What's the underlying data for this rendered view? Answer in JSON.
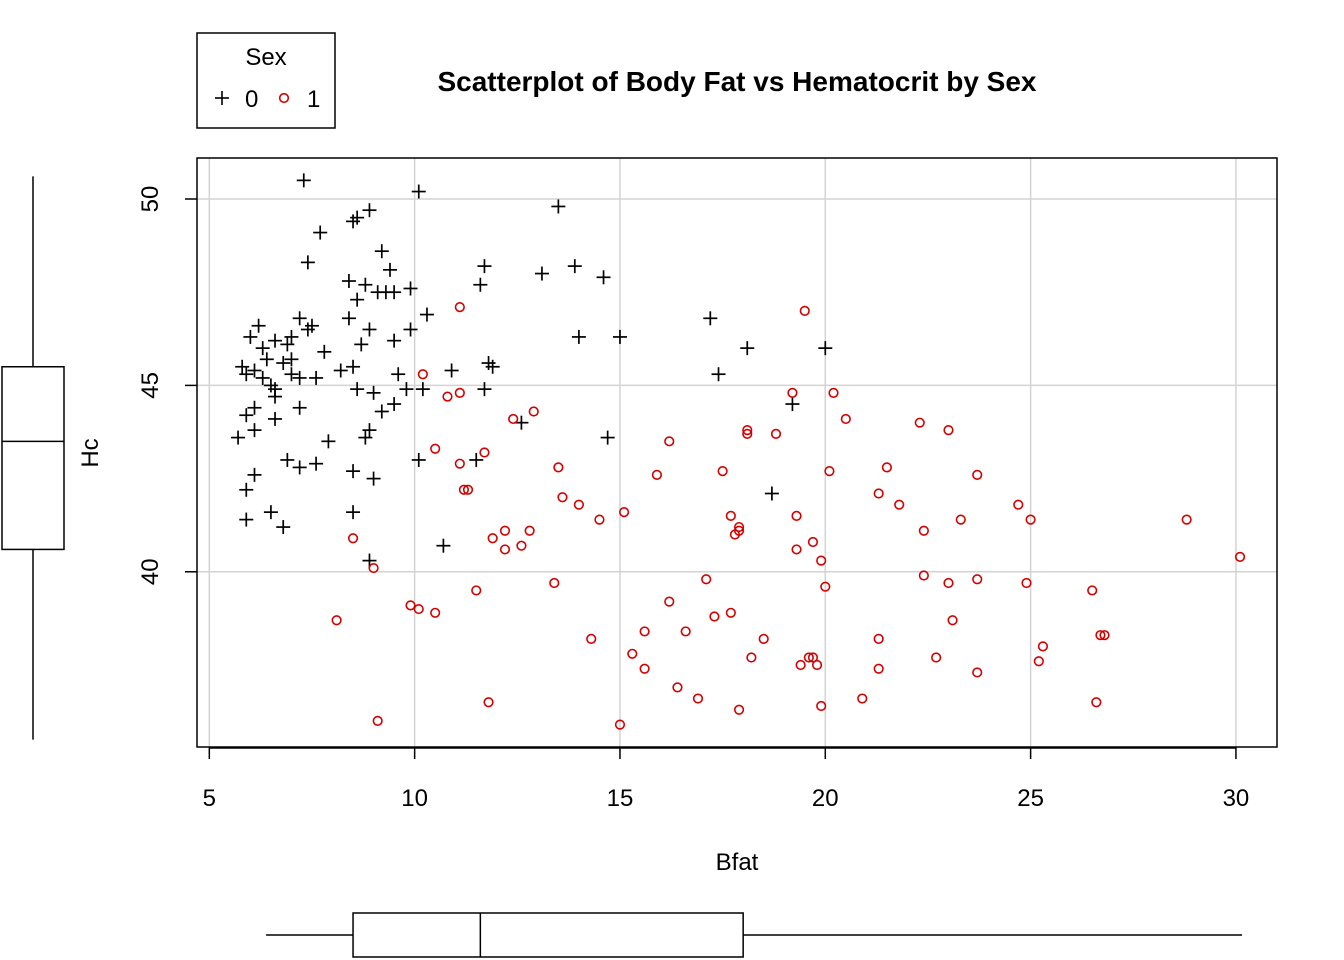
{
  "chart_data": {
    "type": "scatter",
    "title": "Scatterplot of Body Fat vs Hematocrit by Sex",
    "xlabel": "Bfat",
    "ylabel": "Hc",
    "xlim": [
      4.7,
      31.0
    ],
    "ylim": [
      35.3,
      51.1
    ],
    "xticks": [
      5,
      10,
      15,
      20,
      25,
      30
    ],
    "yticks": [
      40,
      45,
      50
    ],
    "grid": true,
    "legend": {
      "title": "Sex",
      "placement": "top-left outside"
    },
    "colors": {
      "0": "#000000",
      "1": "#d40000"
    },
    "series": [
      {
        "name": "0",
        "marker": "plus",
        "color": "#000000",
        "points": [
          [
            7.3,
            50.5
          ],
          [
            10.1,
            50.2
          ],
          [
            8.9,
            49.7
          ],
          [
            13.5,
            49.8
          ],
          [
            8.6,
            49.5
          ],
          [
            8.5,
            49.4
          ],
          [
            7.7,
            49.1
          ],
          [
            9.2,
            48.6
          ],
          [
            7.4,
            48.3
          ],
          [
            9.4,
            48.1
          ],
          [
            11.7,
            48.2
          ],
          [
            13.9,
            48.2
          ],
          [
            13.1,
            48.0
          ],
          [
            14.6,
            47.9
          ],
          [
            8.4,
            47.8
          ],
          [
            8.8,
            47.7
          ],
          [
            11.6,
            47.7
          ],
          [
            9.1,
            47.5
          ],
          [
            9.3,
            47.5
          ],
          [
            9.5,
            47.5
          ],
          [
            9.9,
            47.6
          ],
          [
            8.6,
            47.3
          ],
          [
            10.3,
            46.9
          ],
          [
            7.2,
            46.8
          ],
          [
            8.4,
            46.8
          ],
          [
            17.2,
            46.8
          ],
          [
            7.5,
            46.6
          ],
          [
            6.2,
            46.6
          ],
          [
            7.4,
            46.5
          ],
          [
            8.9,
            46.5
          ],
          [
            9.9,
            46.5
          ],
          [
            6.0,
            46.3
          ],
          [
            7.0,
            46.3
          ],
          [
            6.6,
            46.2
          ],
          [
            14.0,
            46.3
          ],
          [
            15.0,
            46.3
          ],
          [
            6.3,
            46.0
          ],
          [
            6.9,
            46.1
          ],
          [
            9.5,
            46.2
          ],
          [
            8.7,
            46.1
          ],
          [
            18.1,
            46.0
          ],
          [
            20.0,
            46.0
          ],
          [
            6.4,
            45.7
          ],
          [
            6.8,
            45.6
          ],
          [
            7.0,
            45.7
          ],
          [
            7.8,
            45.9
          ],
          [
            5.8,
            45.5
          ],
          [
            5.9,
            45.3
          ],
          [
            8.5,
            45.5
          ],
          [
            6.1,
            45.4
          ],
          [
            6.3,
            45.2
          ],
          [
            7.0,
            45.3
          ],
          [
            7.2,
            45.2
          ],
          [
            7.6,
            45.2
          ],
          [
            8.2,
            45.4
          ],
          [
            9.6,
            45.3
          ],
          [
            10.9,
            45.4
          ],
          [
            11.9,
            45.5
          ],
          [
            11.8,
            45.6
          ],
          [
            17.4,
            45.3
          ],
          [
            6.5,
            45.0
          ],
          [
            6.6,
            44.9
          ],
          [
            8.6,
            44.9
          ],
          [
            9.0,
            44.8
          ],
          [
            9.8,
            44.9
          ],
          [
            10.2,
            44.9
          ],
          [
            11.7,
            44.9
          ],
          [
            6.6,
            44.7
          ],
          [
            9.5,
            44.5
          ],
          [
            7.2,
            44.4
          ],
          [
            6.1,
            44.4
          ],
          [
            5.9,
            44.2
          ],
          [
            9.2,
            44.3
          ],
          [
            19.2,
            44.5
          ],
          [
            6.6,
            44.1
          ],
          [
            12.6,
            44.0
          ],
          [
            6.1,
            43.8
          ],
          [
            8.9,
            43.8
          ],
          [
            5.7,
            43.6
          ],
          [
            8.8,
            43.6
          ],
          [
            14.7,
            43.6
          ],
          [
            7.9,
            43.5
          ],
          [
            6.9,
            43.0
          ],
          [
            7.2,
            42.8
          ],
          [
            7.6,
            42.9
          ],
          [
            10.1,
            43.0
          ],
          [
            11.5,
            43.0
          ],
          [
            8.5,
            42.7
          ],
          [
            6.1,
            42.6
          ],
          [
            9.0,
            42.5
          ],
          [
            5.9,
            42.2
          ],
          [
            18.7,
            42.1
          ],
          [
            6.5,
            41.6
          ],
          [
            8.5,
            41.6
          ],
          [
            5.9,
            41.4
          ],
          [
            6.8,
            41.2
          ],
          [
            10.7,
            40.7
          ],
          [
            8.9,
            40.3
          ]
        ]
      },
      {
        "name": "1",
        "marker": "circle",
        "color": "#d40000",
        "points": [
          [
            11.1,
            47.1
          ],
          [
            19.5,
            47.0
          ],
          [
            10.2,
            45.3
          ],
          [
            11.1,
            44.8
          ],
          [
            10.8,
            44.7
          ],
          [
            19.2,
            44.8
          ],
          [
            20.2,
            44.8
          ],
          [
            12.9,
            44.3
          ],
          [
            12.4,
            44.1
          ],
          [
            20.5,
            44.1
          ],
          [
            22.3,
            44.0
          ],
          [
            23.0,
            43.8
          ],
          [
            18.1,
            43.8
          ],
          [
            18.1,
            43.7
          ],
          [
            18.8,
            43.7
          ],
          [
            16.2,
            43.5
          ],
          [
            10.5,
            43.3
          ],
          [
            11.7,
            43.2
          ],
          [
            11.1,
            42.9
          ],
          [
            13.5,
            42.8
          ],
          [
            17.5,
            42.7
          ],
          [
            20.1,
            42.7
          ],
          [
            21.5,
            42.8
          ],
          [
            15.9,
            42.6
          ],
          [
            23.7,
            42.6
          ],
          [
            11.2,
            42.2
          ],
          [
            11.3,
            42.2
          ],
          [
            13.6,
            42.0
          ],
          [
            14.0,
            41.8
          ],
          [
            21.3,
            42.1
          ],
          [
            21.8,
            41.8
          ],
          [
            24.7,
            41.8
          ],
          [
            15.1,
            41.6
          ],
          [
            14.5,
            41.4
          ],
          [
            17.7,
            41.5
          ],
          [
            19.3,
            41.5
          ],
          [
            23.3,
            41.4
          ],
          [
            25.0,
            41.4
          ],
          [
            28.8,
            41.4
          ],
          [
            12.2,
            41.1
          ],
          [
            12.8,
            41.1
          ],
          [
            17.9,
            41.2
          ],
          [
            17.8,
            41.0
          ],
          [
            17.9,
            41.1
          ],
          [
            22.4,
            41.1
          ],
          [
            11.9,
            40.9
          ],
          [
            12.6,
            40.7
          ],
          [
            12.2,
            40.6
          ],
          [
            19.7,
            40.8
          ],
          [
            19.3,
            40.6
          ],
          [
            19.9,
            40.3
          ],
          [
            30.1,
            40.4
          ],
          [
            8.5,
            40.9
          ],
          [
            9.0,
            40.1
          ],
          [
            22.4,
            39.9
          ],
          [
            13.4,
            39.7
          ],
          [
            17.1,
            39.8
          ],
          [
            23.0,
            39.7
          ],
          [
            23.7,
            39.8
          ],
          [
            24.9,
            39.7
          ],
          [
            20.0,
            39.6
          ],
          [
            11.5,
            39.5
          ],
          [
            26.5,
            39.5
          ],
          [
            9.9,
            39.1
          ],
          [
            10.1,
            39.0
          ],
          [
            10.5,
            38.9
          ],
          [
            16.2,
            39.2
          ],
          [
            17.7,
            38.9
          ],
          [
            17.3,
            38.8
          ],
          [
            23.1,
            38.7
          ],
          [
            8.1,
            38.7
          ],
          [
            15.6,
            38.4
          ],
          [
            16.6,
            38.4
          ],
          [
            26.7,
            38.3
          ],
          [
            26.8,
            38.3
          ],
          [
            14.3,
            38.2
          ],
          [
            18.5,
            38.2
          ],
          [
            21.3,
            38.2
          ],
          [
            25.3,
            38.0
          ],
          [
            15.3,
            37.8
          ],
          [
            18.2,
            37.7
          ],
          [
            19.7,
            37.7
          ],
          [
            19.6,
            37.7
          ],
          [
            22.7,
            37.7
          ],
          [
            25.2,
            37.6
          ],
          [
            19.4,
            37.5
          ],
          [
            19.8,
            37.5
          ],
          [
            15.6,
            37.4
          ],
          [
            21.3,
            37.4
          ],
          [
            23.7,
            37.3
          ],
          [
            16.4,
            36.9
          ],
          [
            16.9,
            36.6
          ],
          [
            20.9,
            36.6
          ],
          [
            11.8,
            36.5
          ],
          [
            26.6,
            36.5
          ],
          [
            19.9,
            36.4
          ],
          [
            17.9,
            36.3
          ],
          [
            9.1,
            36.0
          ],
          [
            15.0,
            35.9
          ]
        ]
      }
    ],
    "boxplot_x": {
      "whisker_low": 5.7,
      "q1": 8.5,
      "median": 11.6,
      "q3": 18.0,
      "whisker_high": 30.1
    },
    "boxplot_y": {
      "whisker_low": 35.9,
      "q1": 40.6,
      "median": 43.5,
      "q3": 45.5,
      "whisker_high": 50.5
    }
  }
}
